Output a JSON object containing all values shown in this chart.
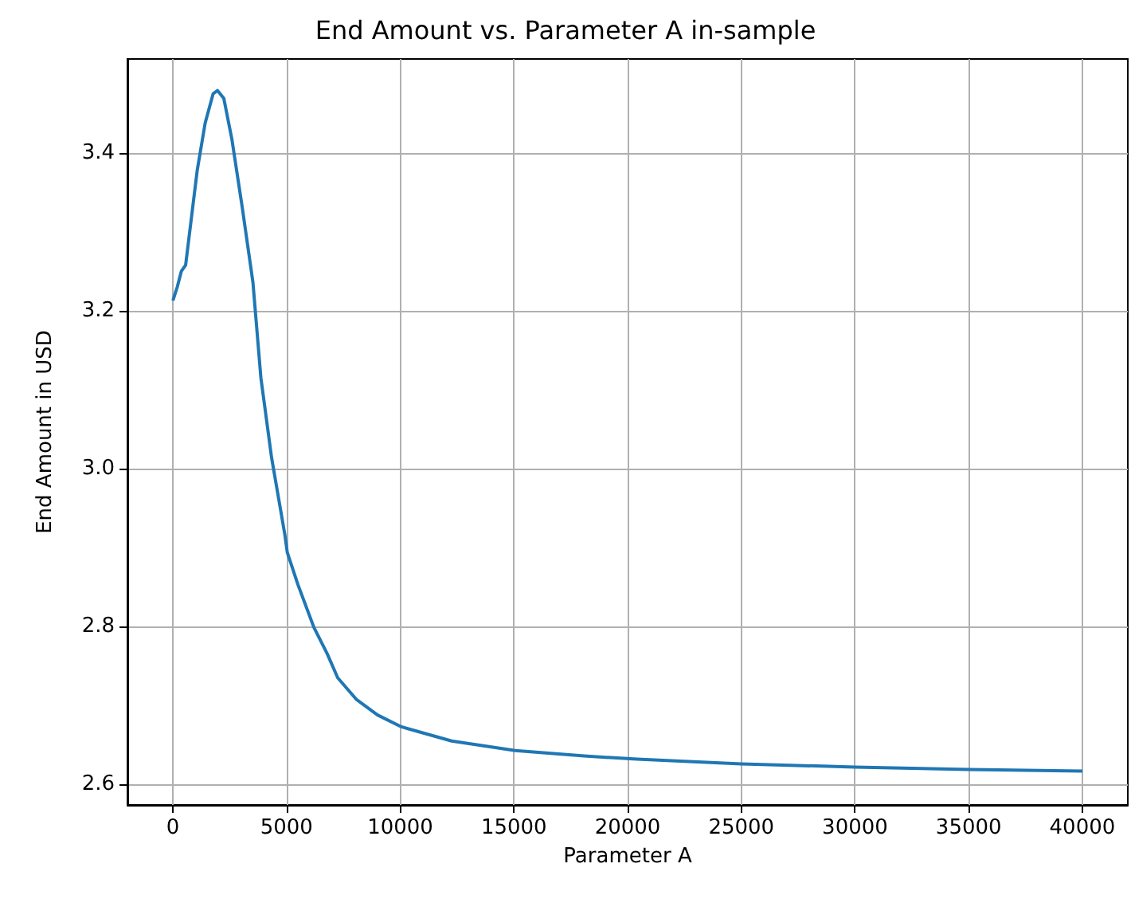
{
  "chart_data": {
    "type": "line",
    "title": "End Amount vs. Parameter A in-sample",
    "xlabel": "Parameter A",
    "ylabel": "End Amount in USD",
    "x": [
      0,
      190,
      370,
      560,
      840,
      1070,
      1420,
      1770,
      1960,
      2240,
      2590,
      3050,
      3520,
      3870,
      4340,
      4920,
      5030,
      5500,
      6200,
      6780,
      7250,
      8060,
      9000,
      10050,
      12260,
      15060,
      18090,
      20420,
      25000,
      30000,
      35000,
      40000
    ],
    "series": [
      {
        "color": "#1f77b4",
        "values": [
          3.213,
          3.23,
          3.25,
          3.258,
          3.324,
          3.378,
          3.438,
          3.475,
          3.479,
          3.469,
          3.418,
          3.331,
          3.236,
          3.115,
          3.014,
          2.917,
          2.894,
          2.853,
          2.799,
          2.766,
          2.735,
          2.708,
          2.688,
          2.673,
          2.655,
          2.643,
          2.636,
          2.632,
          2.626,
          2.622,
          2.619,
          2.617
        ]
      }
    ],
    "xlim": [
      -2000,
      42000
    ],
    "xticks": [
      0,
      5000,
      10000,
      15000,
      20000,
      25000,
      30000,
      35000,
      40000
    ],
    "ylim": [
      2.574,
      3.519
    ],
    "yticks": [
      {
        "value": 2.6,
        "label": "2.6"
      },
      {
        "value": 2.8,
        "label": "2.8"
      },
      {
        "value": 3.0,
        "label": "3.0"
      },
      {
        "value": 3.2,
        "label": "3.2"
      },
      {
        "value": 3.4,
        "label": "3.4"
      }
    ],
    "grid": true,
    "marker": "none",
    "line_style": "solid"
  }
}
